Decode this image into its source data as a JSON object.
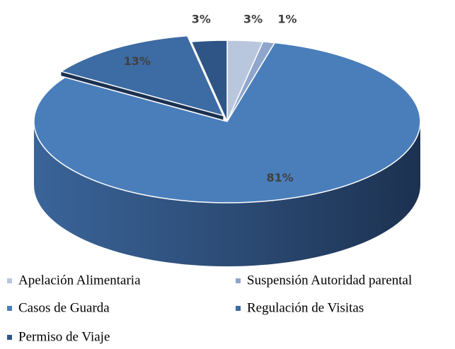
{
  "chart_data": {
    "type": "pie3d",
    "categories": [
      "Apelación Alimentaria",
      "Suspensión Autoridad parental",
      "Casos de Guarda",
      "Regulación de Visitas",
      "Permiso de Viaje"
    ],
    "values": [
      3,
      1,
      81,
      13,
      3
    ],
    "value_labels": [
      "3%",
      "1%",
      "81%",
      "13%",
      "3%"
    ],
    "colors": [
      "#b9c7de",
      "#8ea6cc",
      "#4a7ebb",
      "#3d6ba3",
      "#2f5587"
    ],
    "legend": "bottom"
  }
}
